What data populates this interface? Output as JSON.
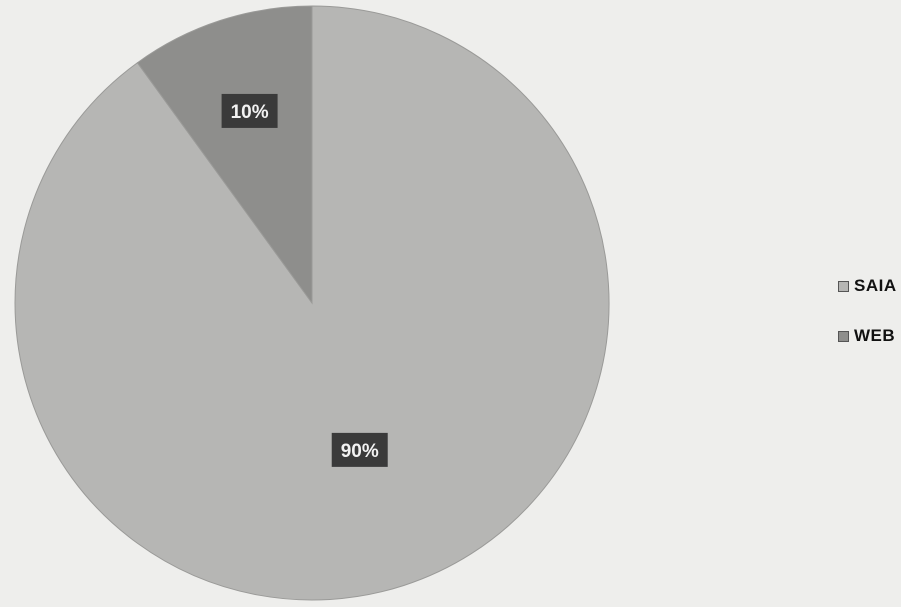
{
  "chart_data": {
    "type": "pie",
    "categories": [
      "SAIA",
      "WEB"
    ],
    "values": [
      90,
      10
    ],
    "data_labels": [
      "90%",
      "10%"
    ],
    "colors": [
      "#b6b6b4",
      "#8e8e8c"
    ],
    "legend_position": "right"
  },
  "legend": {
    "items": [
      {
        "label": "SAIA",
        "color": "#b6b6b4"
      },
      {
        "label": "WEB",
        "color": "#8e8e8c"
      }
    ]
  }
}
